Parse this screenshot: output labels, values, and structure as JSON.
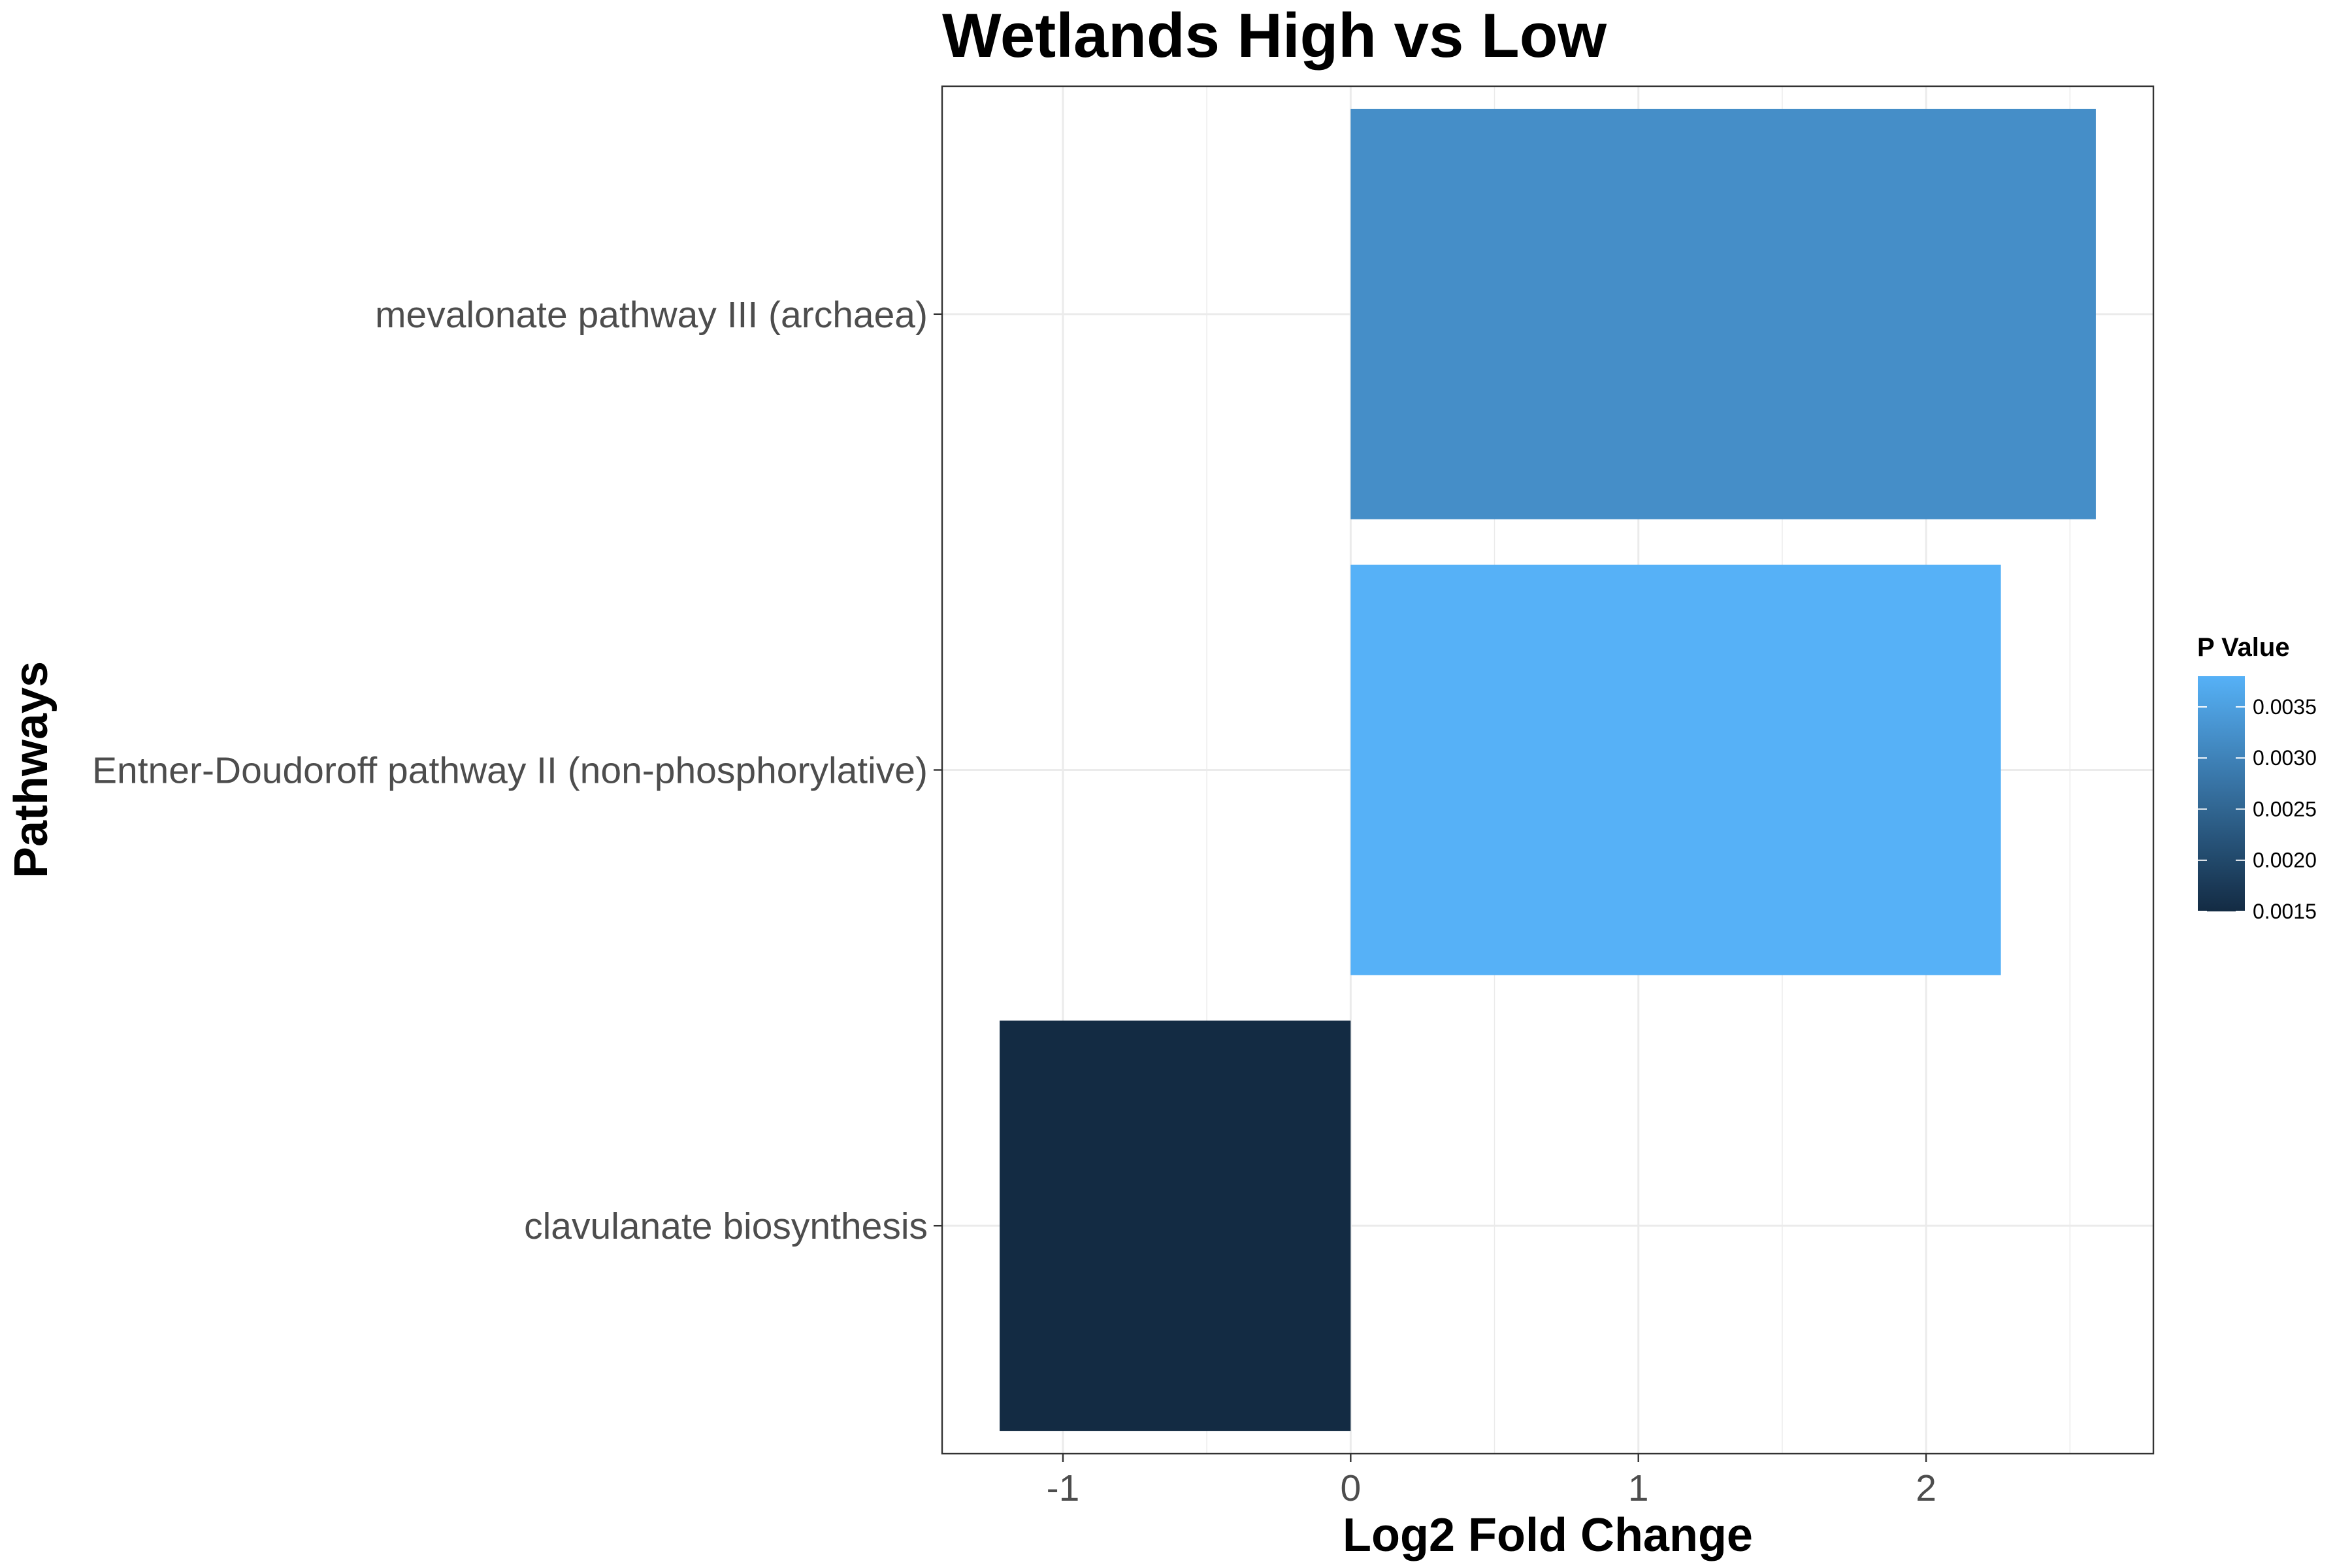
{
  "chart_data": {
    "type": "bar",
    "orientation": "horizontal",
    "title": "Wetlands High vs Low",
    "xlabel": "Log2 Fold Change",
    "ylabel": "Pathways",
    "categories": [
      "mevalonate pathway III (archaea)",
      "Entner-Doudoroff pathway II (non-phosphorylative)",
      "clavulanate biosynthesis"
    ],
    "values": [
      2.59,
      2.26,
      -1.22
    ],
    "p_values": [
      0.0032,
      0.0038,
      0.0015
    ],
    "x_ticks": [
      -1,
      0,
      1,
      2
    ],
    "x_tick_labels": [
      "-1",
      "0",
      "1",
      "2"
    ],
    "xlim": [
      -1.42,
      2.79
    ],
    "grid": true,
    "theme": "bw",
    "legend": {
      "title": "P Value",
      "placement": "right",
      "ticks": [
        0.0015,
        0.002,
        0.0025,
        0.003,
        0.0035
      ],
      "tick_labels": [
        "0.0015",
        "0.0020",
        "0.0025",
        "0.0030",
        "0.0035"
      ],
      "range": [
        0.0015,
        0.0038
      ],
      "color_low": "#132B43",
      "color_high": "#56B1F7"
    }
  }
}
